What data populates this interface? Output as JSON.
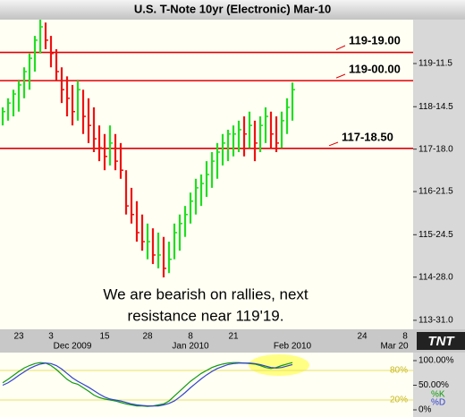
{
  "chart_data": {
    "type": "ohlc",
    "title": "U.S. T-Note 10yr (Electronic) Mar-10",
    "annotation": [
      "We are bearish on rallies, next",
      "resistance near 119'19."
    ],
    "logo": "TNT",
    "categories": [
      null,
      null,
      null,
      "23",
      null,
      null,
      null,
      null,
      null,
      "3",
      null,
      null,
      null,
      null,
      null,
      null,
      null,
      null,
      null,
      "15",
      null,
      null,
      null,
      null,
      null,
      null,
      null,
      "28",
      null,
      null,
      null,
      null,
      null,
      null,
      null,
      "8",
      null,
      null,
      null,
      null,
      null,
      null,
      null,
      "21",
      null,
      null,
      null,
      null,
      null,
      null,
      null,
      null,
      null,
      null,
      null,
      null,
      null,
      null,
      null,
      null,
      null,
      null,
      null,
      null,
      null,
      null,
      null,
      "24",
      null,
      null,
      null,
      null,
      null,
      null,
      null,
      "8",
      null
    ],
    "month_categories": [
      null,
      null,
      null,
      null,
      null,
      null,
      null,
      null,
      null,
      null,
      null,
      null,
      null,
      "Dec 2009",
      null,
      null,
      null,
      null,
      null,
      null,
      null,
      null,
      null,
      null,
      null,
      null,
      null,
      null,
      null,
      null,
      null,
      null,
      null,
      null,
      null,
      "Jan 2010",
      null,
      null,
      null,
      null,
      null,
      null,
      null,
      null,
      null,
      null,
      null,
      null,
      null,
      null,
      null,
      null,
      null,
      null,
      "Feb 2010",
      null,
      null,
      null,
      null,
      null,
      null,
      null,
      null,
      null,
      null,
      null,
      null,
      null,
      null,
      null,
      null,
      null,
      null,
      "Mar 20",
      null,
      null,
      null
    ],
    "high": [
      118.44,
      118.63,
      118.81,
      119.0,
      119.28,
      119.57,
      119.94,
      120.28,
      120.22,
      119.94,
      119.66,
      119.28,
      119.09,
      118.91,
      119.0,
      118.81,
      118.63,
      118.44,
      118.06,
      117.88,
      118.06,
      117.88,
      117.69,
      117.12,
      116.75,
      116.47,
      116.19,
      116.0,
      115.9,
      115.81,
      115.72,
      115.62,
      116.0,
      116.19,
      116.37,
      116.65,
      116.94,
      117.03,
      117.31,
      117.5,
      117.69,
      117.88,
      117.97,
      118.06,
      118.16,
      118.25,
      118.35,
      118.16,
      118.25,
      118.44,
      118.35,
      118.25,
      118.35,
      118.63,
      118.96,
      null,
      null,
      null,
      null,
      null,
      null,
      null,
      null,
      null,
      null,
      null,
      null,
      null,
      null,
      null,
      null,
      null,
      null,
      null,
      null,
      null,
      null
    ],
    "low": [
      118.06,
      118.16,
      118.25,
      118.35,
      118.63,
      118.81,
      119.19,
      119.57,
      119.66,
      119.28,
      119.0,
      118.53,
      118.25,
      118.06,
      118.16,
      117.88,
      117.69,
      117.5,
      117.31,
      117.12,
      117.22,
      117.12,
      116.94,
      116.19,
      116.0,
      115.62,
      115.43,
      115.25,
      115.15,
      115.06,
      114.87,
      114.96,
      115.25,
      115.43,
      115.72,
      116.0,
      116.19,
      116.37,
      116.56,
      116.75,
      116.94,
      117.22,
      117.31,
      117.41,
      117.5,
      117.41,
      117.59,
      117.31,
      117.5,
      117.69,
      117.59,
      117.5,
      117.59,
      117.88,
      118.16,
      null,
      null,
      null,
      null,
      null,
      null,
      null,
      null,
      null,
      null,
      null,
      null,
      null,
      null,
      null,
      null,
      null,
      null,
      null,
      null,
      null,
      null
    ],
    "close": [
      118.35,
      118.53,
      118.72,
      118.91,
      119.19,
      119.47,
      119.85,
      120.13,
      119.85,
      119.57,
      119.19,
      118.81,
      118.63,
      118.35,
      118.81,
      118.25,
      118.06,
      117.78,
      117.59,
      117.41,
      117.69,
      117.31,
      117.12,
      116.37,
      116.19,
      115.81,
      115.62,
      115.62,
      115.34,
      115.34,
      115.06,
      115.25,
      115.81,
      116.0,
      116.19,
      116.47,
      116.75,
      116.84,
      117.03,
      117.31,
      117.5,
      117.69,
      117.88,
      117.88,
      117.97,
      117.88,
      118.06,
      117.69,
      118.06,
      118.25,
      117.88,
      117.69,
      118.16,
      118.44,
      118.81,
      null,
      null,
      null,
      null,
      null,
      null,
      null,
      null,
      null,
      null,
      null,
      null,
      null,
      null,
      null,
      null,
      null,
      null,
      null,
      null,
      null,
      null
    ],
    "up_color": "#22dd22",
    "down_color": "#ee1111",
    "ylim": [
      113.78,
      120.28
    ],
    "yticks": [
      {
        "value": 113.96875,
        "label": "113-31.0"
      },
      {
        "value": 114.875,
        "label": "114-28.0"
      },
      {
        "value": 115.765625,
        "label": "115-24.5"
      },
      {
        "value": 116.671875,
        "label": "116-21.5"
      },
      {
        "value": 117.5625,
        "label": "117-18.0"
      },
      {
        "value": 118.453125,
        "label": "118-14.5"
      },
      {
        "value": 119.359375,
        "label": "119-11.5"
      }
    ],
    "levels": [
      {
        "value": 119.59375,
        "label": "119-19.00"
      },
      {
        "value": 119.0,
        "label": "119-00.00"
      },
      {
        "value": 117.578125,
        "label": "117-18.50"
      }
    ],
    "level_color": "#dd0000",
    "stochastic": {
      "ylim": [
        0,
        100
      ],
      "yticks": [
        {
          "value": 0,
          "label": "0%"
        },
        {
          "value": 50,
          "label": "50.00%"
        },
        {
          "value": 100,
          "label": "100.00%"
        }
      ],
      "levels": [
        {
          "value": 20,
          "label": "20%"
        },
        {
          "value": 80,
          "label": "80%"
        }
      ],
      "series": [
        {
          "name": "%K",
          "color": "#119911",
          "values": [
            55,
            62,
            70,
            78,
            85,
            90,
            94,
            96,
            95,
            90,
            82,
            72,
            62,
            55,
            52,
            45,
            38,
            30,
            25,
            22,
            20,
            18,
            15,
            12,
            10,
            8,
            8,
            7,
            8,
            10,
            12,
            18,
            28,
            38,
            48,
            58,
            66,
            74,
            80,
            86,
            90,
            93,
            95,
            96,
            96,
            95,
            94,
            93,
            90,
            86,
            84,
            86,
            90,
            93,
            96,
            null,
            null,
            null,
            null,
            null,
            null,
            null,
            null,
            null,
            null,
            null,
            null,
            null,
            null,
            null,
            null,
            null,
            null,
            null,
            null,
            null,
            null
          ]
        },
        {
          "name": "%D",
          "color": "#3344cc",
          "values": [
            50,
            55,
            62,
            70,
            77,
            84,
            89,
            93,
            95,
            94,
            90,
            83,
            74,
            65,
            58,
            52,
            46,
            39,
            32,
            26,
            22,
            20,
            18,
            15,
            12,
            10,
            9,
            8,
            8,
            8,
            10,
            13,
            18,
            26,
            35,
            45,
            54,
            63,
            71,
            78,
            84,
            88,
            92,
            94,
            95,
            95,
            95,
            94,
            92,
            89,
            86,
            85,
            86,
            89,
            92,
            null,
            null,
            null,
            null,
            null,
            null,
            null,
            null,
            null,
            null,
            null,
            null,
            null,
            null,
            null,
            null,
            null,
            null,
            null,
            null,
            null,
            null
          ]
        }
      ]
    }
  }
}
